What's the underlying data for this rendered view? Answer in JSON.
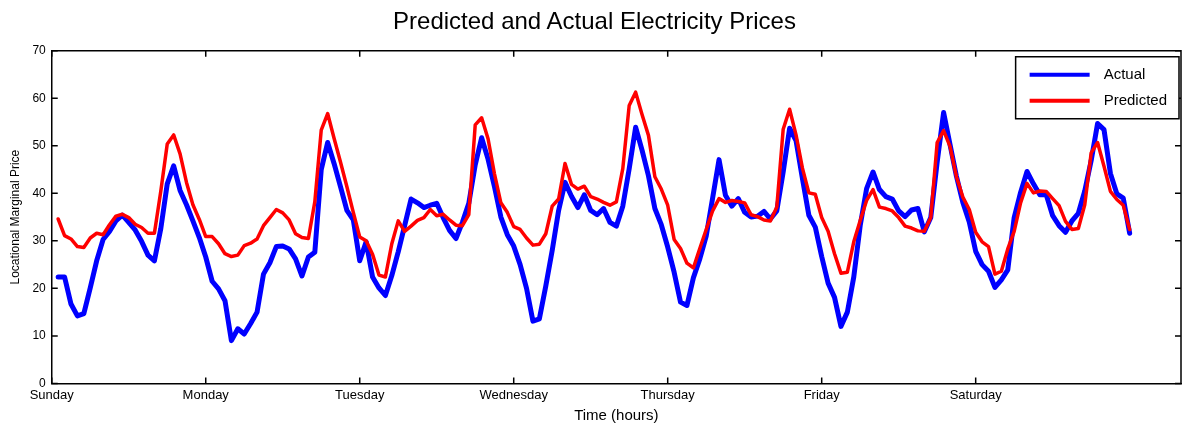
{
  "chart_data": {
    "type": "line",
    "title": "Predicted and Actual Electricity Prices",
    "xlabel": "Time (hours)",
    "ylabel": "Locational Marginal Price",
    "categories": [
      "Sunday",
      null,
      null,
      null,
      null,
      null,
      null,
      null,
      null,
      null,
      null,
      null,
      null,
      null,
      null,
      null,
      null,
      null,
      null,
      null,
      null,
      null,
      null,
      null,
      "Monday",
      null,
      null,
      null,
      null,
      null,
      null,
      null,
      null,
      null,
      null,
      null,
      null,
      null,
      null,
      null,
      null,
      null,
      null,
      null,
      null,
      null,
      null,
      null,
      "Tuesday",
      null,
      null,
      null,
      null,
      null,
      null,
      null,
      null,
      null,
      null,
      null,
      null,
      null,
      null,
      null,
      null,
      null,
      null,
      null,
      null,
      null,
      null,
      null,
      "Wednesday",
      null,
      null,
      null,
      null,
      null,
      null,
      null,
      null,
      null,
      null,
      null,
      null,
      null,
      null,
      null,
      null,
      null,
      null,
      null,
      null,
      null,
      null,
      null,
      "Thursday",
      null,
      null,
      null,
      null,
      null,
      null,
      null,
      null,
      null,
      null,
      null,
      null,
      null,
      null,
      null,
      null,
      null,
      null,
      null,
      null,
      null,
      null,
      null,
      "Friday",
      null,
      null,
      null,
      null,
      null,
      null,
      null,
      null,
      null,
      null,
      null,
      null,
      null,
      null,
      null,
      null,
      null,
      null,
      null,
      null,
      null,
      null,
      null,
      "Saturday",
      null,
      null,
      null,
      null,
      null,
      null,
      null,
      null,
      null,
      null,
      null,
      null,
      null,
      null,
      null,
      null,
      null,
      null,
      null,
      null,
      null,
      null,
      null,
      null,
      null,
      null,
      null,
      null,
      null,
      null,
      null,
      null
    ],
    "ylim": [
      0,
      70
    ],
    "yticks": [
      0,
      10,
      20,
      30,
      40,
      50,
      60,
      70
    ],
    "grid": false,
    "legend": "top right",
    "line_style": "solid",
    "marker": "none",
    "series": [
      {
        "name": "Actual",
        "color": "#0000ff",
        "values": [
          null,
          22.4,
          22.4,
          16.7,
          14.2,
          14.7,
          20.1,
          25.8,
          30.3,
          32,
          34.2,
          35.4,
          33.9,
          32.3,
          29.9,
          27,
          25.8,
          32.6,
          42,
          45.8,
          40.6,
          37.6,
          34.2,
          30.7,
          26.6,
          21.5,
          19.9,
          17.4,
          9,
          11.5,
          10.4,
          12.6,
          15,
          23,
          25.4,
          28.8,
          28.9,
          28.3,
          26.2,
          22.6,
          26.6,
          27.6,
          45,
          50.7,
          46.3,
          41.4,
          36.4,
          34.4,
          25.8,
          29.8,
          22.4,
          20.1,
          18.5,
          22.7,
          27.7,
          33.2,
          38.8,
          38,
          37,
          37.5,
          37.9,
          34.9,
          32.2,
          30.5,
          33.9,
          37.9,
          46,
          51.7,
          47.2,
          41.4,
          35,
          31.3,
          28.9,
          25,
          20,
          13.1,
          13.6,
          20.5,
          28,
          36.4,
          42.3,
          39.4,
          37,
          39.7,
          36.4,
          35.5,
          36.8,
          33.9,
          33.1,
          37.3,
          45.2,
          53.9,
          49.1,
          43.7,
          36.8,
          33.4,
          28.7,
          23.4,
          17.1,
          16.4,
          22.2,
          26.2,
          31,
          39,
          47.1,
          39.6,
          37.3,
          38.9,
          36,
          35,
          35.2,
          36.2,
          34.6,
          36.3,
          44.5,
          53.7,
          51.1,
          43.1,
          35.4,
          32.9,
          26.7,
          21.1,
          18.1,
          12,
          15,
          22.4,
          33.2,
          41,
          44.5,
          40.8,
          39.3,
          38.8,
          36.3,
          35.1,
          36.5,
          36.8,
          31.9,
          34.9,
          46.6,
          57,
          50.3,
          43.6,
          38.1,
          34,
          27.8,
          25,
          23.6,
          20.2,
          21.8,
          23.9,
          34.9,
          40.2,
          44.6,
          42,
          39.7,
          39.7,
          35.3,
          33.2,
          31.8,
          34.2,
          35.8,
          40.5,
          46.9,
          54.7,
          53.4,
          44.2,
          39.9,
          39,
          31.6,
          null,
          null,
          null,
          null,
          null,
          null,
          null,
          null
        ]
      },
      {
        "name": "Predicted",
        "color": "#ff0000",
        "values": [
          null,
          34.6,
          31.1,
          30.4,
          28.8,
          28.6,
          30.6,
          31.6,
          31.3,
          33.4,
          35.2,
          35.6,
          34.9,
          33.5,
          32.8,
          31.6,
          31.6,
          40.5,
          50.4,
          52.3,
          48.3,
          42.3,
          37.6,
          34.5,
          30.9,
          30.9,
          29.4,
          27.3,
          26.7,
          27,
          29,
          29.5,
          30.4,
          33.2,
          34.9,
          36.6,
          35.9,
          34.4,
          31.5,
          30.7,
          30.5,
          38.2,
          53.3,
          56.8,
          51.6,
          46.6,
          41.4,
          36,
          30.8,
          30,
          27.2,
          22.8,
          22.4,
          29.4,
          34.2,
          32,
          33.1,
          34.3,
          34.9,
          36.6,
          35.3,
          35.6,
          34.4,
          33.3,
          33.2,
          35.5,
          54.4,
          55.9,
          51.5,
          44.1,
          38,
          36,
          33,
          32.4,
          30.6,
          29.1,
          29.3,
          31.5,
          37.3,
          38.8,
          46.3,
          41.9,
          40.9,
          41.5,
          39.3,
          38.8,
          38.1,
          37.5,
          38.2,
          45.2,
          58.5,
          61.3,
          56.6,
          52.2,
          43.5,
          40.9,
          37.5,
          30.3,
          28.4,
          25.3,
          24.3,
          28.4,
          32.4,
          36.3,
          38.9,
          38.1,
          38.5,
          38.3,
          38,
          35.5,
          35.1,
          34.4,
          34.2,
          37.1,
          53.5,
          57.7,
          52.3,
          45.3,
          40.1,
          39.8,
          34.9,
          32,
          27.3,
          23.2,
          23.4,
          29.8,
          34.3,
          38.5,
          40.8,
          37.1,
          36.8,
          36.3,
          34.9,
          33.1,
          32.7,
          32.1,
          32,
          34.9,
          50.7,
          53.2,
          49.9,
          43.5,
          39.2,
          36.6,
          31.8,
          29.8,
          28.8,
          23,
          23.6,
          28.3,
          32,
          38,
          42.1,
          40.1,
          40.5,
          40.4,
          38.9,
          37.4,
          34.1,
          32.4,
          32.6,
          37.6,
          48.5,
          50.7,
          45.7,
          40.4,
          38.7,
          37.5,
          32.4,
          null,
          null,
          null,
          null,
          null,
          null,
          null,
          null
        ]
      }
    ]
  }
}
